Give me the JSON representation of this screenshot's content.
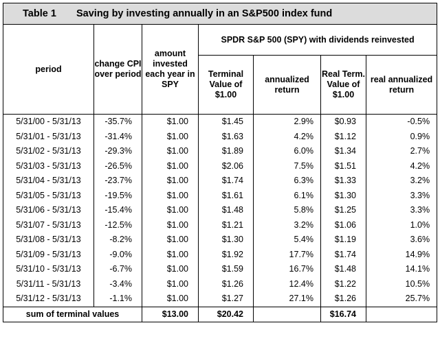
{
  "title": {
    "number": "Table 1",
    "text": "Saving by investing annually in an S&P500 index fund"
  },
  "headers": {
    "period": "period",
    "cpi": "change CPI over period",
    "invested": "amount invested each year in SPY",
    "group": "SPDR S&P 500 (SPY) with dividends reinvested",
    "terminal": "Terminal Value of $1.00",
    "annualized": "annualized return",
    "real_term": "Real Term. Value of $1.00",
    "real_annualized": "real annualized return"
  },
  "rows": [
    {
      "period": "5/31/00 - 5/31/13",
      "cpi": "-35.7%",
      "invested": "$1.00",
      "terminal": "$1.45",
      "annualized": "2.9%",
      "real_term": "$0.93",
      "real_annualized": "-0.5%"
    },
    {
      "period": "5/31/01 - 5/31/13",
      "cpi": "-31.4%",
      "invested": "$1.00",
      "terminal": "$1.63",
      "annualized": "4.2%",
      "real_term": "$1.12",
      "real_annualized": "0.9%"
    },
    {
      "period": "5/31/02 - 5/31/13",
      "cpi": "-29.3%",
      "invested": "$1.00",
      "terminal": "$1.89",
      "annualized": "6.0%",
      "real_term": "$1.34",
      "real_annualized": "2.7%"
    },
    {
      "period": "5/31/03 - 5/31/13",
      "cpi": "-26.5%",
      "invested": "$1.00",
      "terminal": "$2.06",
      "annualized": "7.5%",
      "real_term": "$1.51",
      "real_annualized": "4.2%"
    },
    {
      "period": "5/31/04 - 5/31/13",
      "cpi": "-23.7%",
      "invested": "$1.00",
      "terminal": "$1.74",
      "annualized": "6.3%",
      "real_term": "$1.33",
      "real_annualized": "3.2%"
    },
    {
      "period": "5/31/05 - 5/31/13",
      "cpi": "-19.5%",
      "invested": "$1.00",
      "terminal": "$1.61",
      "annualized": "6.1%",
      "real_term": "$1.30",
      "real_annualized": "3.3%"
    },
    {
      "period": "5/31/06 - 5/31/13",
      "cpi": "-15.4%",
      "invested": "$1.00",
      "terminal": "$1.48",
      "annualized": "5.8%",
      "real_term": "$1.25",
      "real_annualized": "3.3%"
    },
    {
      "period": "5/31/07 - 5/31/13",
      "cpi": "-12.5%",
      "invested": "$1.00",
      "terminal": "$1.21",
      "annualized": "3.2%",
      "real_term": "$1.06",
      "real_annualized": "1.0%"
    },
    {
      "period": "5/31/08 - 5/31/13",
      "cpi": "-8.2%",
      "invested": "$1.00",
      "terminal": "$1.30",
      "annualized": "5.4%",
      "real_term": "$1.19",
      "real_annualized": "3.6%"
    },
    {
      "period": "5/31/09 - 5/31/13",
      "cpi": "-9.0%",
      "invested": "$1.00",
      "terminal": "$1.92",
      "annualized": "17.7%",
      "real_term": "$1.74",
      "real_annualized": "14.9%"
    },
    {
      "period": "5/31/10 - 5/31/13",
      "cpi": "-6.7%",
      "invested": "$1.00",
      "terminal": "$1.59",
      "annualized": "16.7%",
      "real_term": "$1.48",
      "real_annualized": "14.1%"
    },
    {
      "period": "5/31/11 - 5/31/13",
      "cpi": "-3.4%",
      "invested": "$1.00",
      "terminal": "$1.26",
      "annualized": "12.4%",
      "real_term": "$1.22",
      "real_annualized": "10.5%"
    },
    {
      "period": "5/31/12 - 5/31/13",
      "cpi": "-1.1%",
      "invested": "$1.00",
      "terminal": "$1.27",
      "annualized": "27.1%",
      "real_term": "$1.26",
      "real_annualized": "25.7%"
    }
  ],
  "footer": {
    "label": "sum of terminal values",
    "invested": "$13.00",
    "terminal": "$20.42",
    "real_term": "$16.74"
  }
}
